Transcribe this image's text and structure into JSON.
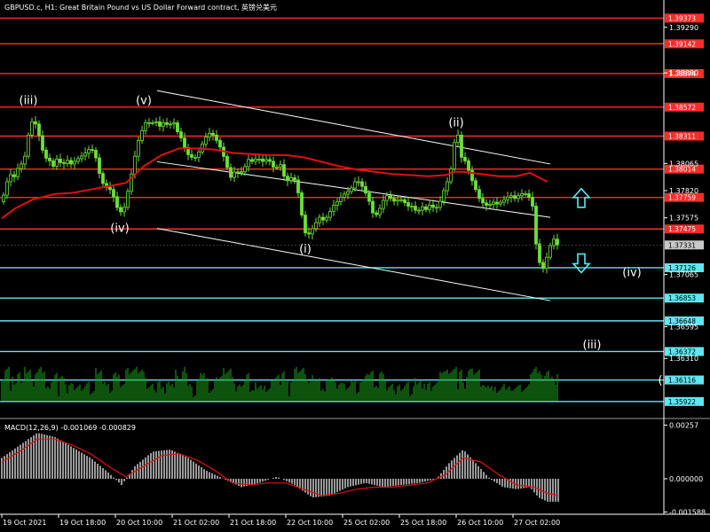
{
  "window": {
    "title": "GBPUSD.c, H1:  Great Britain Pound vs US Dollar Forward contract, 英镑兑美元"
  },
  "chart_data": {
    "type": "candlestick",
    "symbol": "GBPUSD.c",
    "timeframe": "H1",
    "price_axis": {
      "range": [
        1.35785,
        1.3952
      ],
      "ticks": [
        1.3929,
        1.3888,
        1.38065,
        1.3782,
        1.37575,
        1.37065,
        1.36595,
        1.3631
      ]
    },
    "time_axis": {
      "labels": [
        "19 Oct 2021",
        "19 Oct 18:00",
        "20 Oct 10:00",
        "21 Oct 02:00",
        "21 Oct 18:00",
        "22 Oct 10:00",
        "25 Oct 02:00",
        "25 Oct 18:00",
        "26 Oct 10:00",
        "27 Oct 02:00"
      ]
    },
    "current_price": 1.37331,
    "moving_average": {
      "color": "#e01010"
    },
    "price_series": [
      {
        "t": 0,
        "p": 1.3772
      },
      {
        "t": 4,
        "p": 1.3778
      },
      {
        "t": 8,
        "p": 1.379
      },
      {
        "t": 11,
        "p": 1.3798
      },
      {
        "t": 14,
        "p": 1.3793
      },
      {
        "t": 18,
        "p": 1.3796
      },
      {
        "t": 22,
        "p": 1.3808
      },
      {
        "t": 26,
        "p": 1.3804
      },
      {
        "t": 30,
        "p": 1.3822
      },
      {
        "t": 34,
        "p": 1.3842
      },
      {
        "t": 38,
        "p": 1.3846
      },
      {
        "t": 42,
        "p": 1.3838
      },
      {
        "t": 46,
        "p": 1.3825
      },
      {
        "t": 50,
        "p": 1.3812
      },
      {
        "t": 55,
        "p": 1.381
      },
      {
        "t": 60,
        "p": 1.3804
      },
      {
        "t": 65,
        "p": 1.3812
      },
      {
        "t": 70,
        "p": 1.3804
      },
      {
        "t": 75,
        "p": 1.381
      },
      {
        "t": 80,
        "p": 1.3806
      },
      {
        "t": 85,
        "p": 1.3809
      },
      {
        "t": 90,
        "p": 1.3812
      },
      {
        "t": 95,
        "p": 1.3815
      },
      {
        "t": 100,
        "p": 1.3819
      },
      {
        "t": 106,
        "p": 1.3818
      },
      {
        "t": 110,
        "p": 1.3805
      },
      {
        "t": 114,
        "p": 1.379
      },
      {
        "t": 118,
        "p": 1.3787
      },
      {
        "t": 122,
        "p": 1.3783
      },
      {
        "t": 126,
        "p": 1.3783
      },
      {
        "t": 130,
        "p": 1.377
      },
      {
        "t": 135,
        "p": 1.3762
      },
      {
        "t": 140,
        "p": 1.3767
      },
      {
        "t": 145,
        "p": 1.3785
      },
      {
        "t": 150,
        "p": 1.3805
      },
      {
        "t": 155,
        "p": 1.3825
      },
      {
        "t": 160,
        "p": 1.3836
      },
      {
        "t": 165,
        "p": 1.3845
      },
      {
        "t": 170,
        "p": 1.3842
      },
      {
        "t": 175,
        "p": 1.3845
      },
      {
        "t": 180,
        "p": 1.384
      },
      {
        "t": 185,
        "p": 1.3844
      },
      {
        "t": 190,
        "p": 1.384
      },
      {
        "t": 195,
        "p": 1.3845
      },
      {
        "t": 200,
        "p": 1.3835
      },
      {
        "t": 205,
        "p": 1.3828
      },
      {
        "t": 210,
        "p": 1.3816
      },
      {
        "t": 215,
        "p": 1.3812
      },
      {
        "t": 220,
        "p": 1.3812
      },
      {
        "t": 225,
        "p": 1.3818
      },
      {
        "t": 230,
        "p": 1.3828
      },
      {
        "t": 235,
        "p": 1.3834
      },
      {
        "t": 240,
        "p": 1.3832
      },
      {
        "t": 245,
        "p": 1.3826
      },
      {
        "t": 250,
        "p": 1.3818
      },
      {
        "t": 255,
        "p": 1.3805
      },
      {
        "t": 260,
        "p": 1.3794
      },
      {
        "t": 265,
        "p": 1.38
      },
      {
        "t": 270,
        "p": 1.3797
      },
      {
        "t": 275,
        "p": 1.3802
      },
      {
        "t": 280,
        "p": 1.381
      },
      {
        "t": 285,
        "p": 1.3808
      },
      {
        "t": 290,
        "p": 1.3812
      },
      {
        "t": 295,
        "p": 1.3808
      },
      {
        "t": 300,
        "p": 1.381
      },
      {
        "t": 305,
        "p": 1.3808
      },
      {
        "t": 310,
        "p": 1.38
      },
      {
        "t": 315,
        "p": 1.3808
      },
      {
        "t": 320,
        "p": 1.3795
      },
      {
        "t": 325,
        "p": 1.379
      },
      {
        "t": 330,
        "p": 1.3796
      },
      {
        "t": 335,
        "p": 1.3785
      },
      {
        "t": 340,
        "p": 1.376
      },
      {
        "t": 345,
        "p": 1.374
      },
      {
        "t": 350,
        "p": 1.3745
      },
      {
        "t": 355,
        "p": 1.3752
      },
      {
        "t": 360,
        "p": 1.3758
      },
      {
        "t": 365,
        "p": 1.3755
      },
      {
        "t": 370,
        "p": 1.376
      },
      {
        "t": 375,
        "p": 1.3768
      },
      {
        "t": 380,
        "p": 1.3772
      },
      {
        "t": 385,
        "p": 1.3777
      },
      {
        "t": 390,
        "p": 1.378
      },
      {
        "t": 395,
        "p": 1.3783
      },
      {
        "t": 400,
        "p": 1.379
      },
      {
        "t": 405,
        "p": 1.379
      },
      {
        "t": 410,
        "p": 1.3783
      },
      {
        "t": 415,
        "p": 1.3775
      },
      {
        "t": 420,
        "p": 1.3762
      },
      {
        "t": 425,
        "p": 1.376
      },
      {
        "t": 430,
        "p": 1.377
      },
      {
        "t": 435,
        "p": 1.3778
      },
      {
        "t": 440,
        "p": 1.3775
      },
      {
        "t": 445,
        "p": 1.3772
      },
      {
        "t": 450,
        "p": 1.3775
      },
      {
        "t": 455,
        "p": 1.3772
      },
      {
        "t": 460,
        "p": 1.3768
      },
      {
        "t": 465,
        "p": 1.3768
      },
      {
        "t": 470,
        "p": 1.3762
      },
      {
        "t": 475,
        "p": 1.3768
      },
      {
        "t": 480,
        "p": 1.3765
      },
      {
        "t": 485,
        "p": 1.377
      },
      {
        "t": 490,
        "p": 1.3765
      },
      {
        "t": 495,
        "p": 1.377
      },
      {
        "t": 500,
        "p": 1.3782
      },
      {
        "t": 505,
        "p": 1.3792
      },
      {
        "t": 510,
        "p": 1.3808
      },
      {
        "t": 513,
        "p": 1.3834
      },
      {
        "t": 516,
        "p": 1.3832
      },
      {
        "t": 520,
        "p": 1.3812
      },
      {
        "t": 525,
        "p": 1.3808
      },
      {
        "t": 530,
        "p": 1.3795
      },
      {
        "t": 535,
        "p": 1.3785
      },
      {
        "t": 540,
        "p": 1.3775
      },
      {
        "t": 545,
        "p": 1.377
      },
      {
        "t": 550,
        "p": 1.3768
      },
      {
        "t": 555,
        "p": 1.3772
      },
      {
        "t": 560,
        "p": 1.377
      },
      {
        "t": 565,
        "p": 1.3772
      },
      {
        "t": 570,
        "p": 1.3775
      },
      {
        "t": 575,
        "p": 1.3778
      },
      {
        "t": 580,
        "p": 1.3775
      },
      {
        "t": 585,
        "p": 1.3778
      },
      {
        "t": 590,
        "p": 1.378
      },
      {
        "t": 595,
        "p": 1.3778
      },
      {
        "t": 600,
        "p": 1.3768
      },
      {
        "t": 603,
        "p": 1.374
      },
      {
        "t": 606,
        "p": 1.3722
      },
      {
        "t": 609,
        "p": 1.3715
      },
      {
        "t": 612,
        "p": 1.3712
      },
      {
        "t": 615,
        "p": 1.3718
      },
      {
        "t": 618,
        "p": 1.373
      },
      {
        "t": 622,
        "p": 1.3735
      },
      {
        "t": 625,
        "p": 1.374
      },
      {
        "t": 627,
        "p": 1.3733
      }
    ],
    "ma_series": [
      {
        "t": 0,
        "p": 1.3757
      },
      {
        "t": 15,
        "p": 1.3766
      },
      {
        "t": 35,
        "p": 1.3774
      },
      {
        "t": 60,
        "p": 1.3779
      },
      {
        "t": 80,
        "p": 1.378
      },
      {
        "t": 100,
        "p": 1.3783
      },
      {
        "t": 120,
        "p": 1.3786
      },
      {
        "t": 140,
        "p": 1.3789
      },
      {
        "t": 160,
        "p": 1.3804
      },
      {
        "t": 180,
        "p": 1.3814
      },
      {
        "t": 200,
        "p": 1.382
      },
      {
        "t": 220,
        "p": 1.382
      },
      {
        "t": 240,
        "p": 1.3819
      },
      {
        "t": 260,
        "p": 1.3816
      },
      {
        "t": 280,
        "p": 1.3815
      },
      {
        "t": 300,
        "p": 1.3814
      },
      {
        "t": 320,
        "p": 1.3814
      },
      {
        "t": 340,
        "p": 1.3812
      },
      {
        "t": 360,
        "p": 1.3808
      },
      {
        "t": 380,
        "p": 1.3804
      },
      {
        "t": 400,
        "p": 1.3801
      },
      {
        "t": 420,
        "p": 1.3799
      },
      {
        "t": 440,
        "p": 1.3797
      },
      {
        "t": 460,
        "p": 1.3796
      },
      {
        "t": 480,
        "p": 1.3795
      },
      {
        "t": 500,
        "p": 1.3796
      },
      {
        "t": 510,
        "p": 1.3799
      },
      {
        "t": 520,
        "p": 1.3799
      },
      {
        "t": 540,
        "p": 1.3797
      },
      {
        "t": 560,
        "p": 1.3795
      },
      {
        "t": 580,
        "p": 1.3795
      },
      {
        "t": 595,
        "p": 1.3798
      },
      {
        "t": 605,
        "p": 1.3794
      },
      {
        "t": 615,
        "p": 1.379
      }
    ],
    "trend_lines": [
      {
        "t1": 175,
        "p1": 1.3872,
        "t2": 618,
        "p2": 1.3806
      },
      {
        "t1": 175,
        "p1": 1.3808,
        "t2": 618,
        "p2": 1.3758
      },
      {
        "t1": 175,
        "p1": 1.3748,
        "t2": 618,
        "p2": 1.3683
      }
    ],
    "horizontal_levels": [
      {
        "price": 1.39373,
        "label": "1.39373",
        "color": "#ff2a2a"
      },
      {
        "price": 1.39142,
        "label": "1.39142",
        "color": "#ff2a2a"
      },
      {
        "price": 1.38874,
        "label": "1.38874",
        "color": "#ff2a2a"
      },
      {
        "price": 1.38572,
        "label": "1.38572",
        "color": "#ff2a2a"
      },
      {
        "price": 1.38311,
        "label": "1.38311",
        "color": "#ff2a2a"
      },
      {
        "price": 1.38014,
        "label": "1.38014",
        "color": "#ff2a2a"
      },
      {
        "price": 1.37759,
        "label": "1.37759",
        "color": "#ff2a2a"
      },
      {
        "price": 1.37475,
        "label": "1.37475",
        "color": "#ff2a2a"
      },
      {
        "price": 1.37126,
        "label": "1.37126",
        "color": "#5fe6f0"
      },
      {
        "price": 1.36853,
        "label": "1.36853",
        "color": "#5fe6f0"
      },
      {
        "price": 1.36648,
        "label": "1.36648",
        "color": "#5fe6f0"
      },
      {
        "price": 1.36372,
        "label": "1.36372",
        "color": "#5fe6f0"
      },
      {
        "price": 1.36116,
        "label": "1.36116",
        "color": "#5fe6f0"
      },
      {
        "price": 1.35922,
        "label": "1.35922",
        "color": "#5fe6f0"
      }
    ],
    "wave_labels": [
      {
        "text": "(iii)",
        "t": 30,
        "p": 1.386
      },
      {
        "text": "(v)",
        "t": 160,
        "p": 1.386
      },
      {
        "text": "(iv)",
        "t": 133,
        "p": 1.3745
      },
      {
        "text": "(ii)",
        "t": 512,
        "p": 1.384
      },
      {
        "text": "(i)",
        "t": 342,
        "p": 1.3726
      },
      {
        "text": "(iv)",
        "t": 710,
        "p": 1.3705
      },
      {
        "text": "(iii)",
        "t": 665,
        "p": 1.364
      },
      {
        "text": "(",
        "t": 742,
        "p": 1.3608
      }
    ],
    "signal_arrows": [
      {
        "dir": "up",
        "t": 653,
        "p": 1.3775,
        "color": "#5fe6f0"
      },
      {
        "dir": "down",
        "t": 653,
        "p": 1.3717,
        "color": "#5fe6f0"
      }
    ],
    "volume_color": "#1aa31a",
    "macd": {
      "label": "MACD(12,26,9) -0.001069 -0.000829",
      "range": [
        -0.0017,
        0.0028
      ],
      "ticks": [
        0.00257,
        0.0,
        -0.001588
      ],
      "tick_labels": [
        "0.00257",
        "0.000000",
        "-0.001588"
      ],
      "histogram_color": "#c0c0c0",
      "signal_color": "#e01010",
      "histogram": [
        {
          "t": 0,
          "v": 0.001
        },
        {
          "t": 20,
          "v": 0.0016
        },
        {
          "t": 40,
          "v": 0.0022
        },
        {
          "t": 60,
          "v": 0.002
        },
        {
          "t": 80,
          "v": 0.0015
        },
        {
          "t": 100,
          "v": 0.001
        },
        {
          "t": 120,
          "v": 0.0003
        },
        {
          "t": 135,
          "v": -0.0003
        },
        {
          "t": 150,
          "v": 0.0006
        },
        {
          "t": 170,
          "v": 0.0013
        },
        {
          "t": 190,
          "v": 0.0014
        },
        {
          "t": 210,
          "v": 0.001
        },
        {
          "t": 230,
          "v": 0.0004
        },
        {
          "t": 250,
          "v": 0.0
        },
        {
          "t": 270,
          "v": -0.0004
        },
        {
          "t": 290,
          "v": -0.0002
        },
        {
          "t": 310,
          "v": 0.0001
        },
        {
          "t": 330,
          "v": -0.0003
        },
        {
          "t": 350,
          "v": -0.0009
        },
        {
          "t": 370,
          "v": -0.0008
        },
        {
          "t": 390,
          "v": -0.0004
        },
        {
          "t": 410,
          "v": -0.0002
        },
        {
          "t": 430,
          "v": -0.0004
        },
        {
          "t": 450,
          "v": -0.0003
        },
        {
          "t": 470,
          "v": -0.0002
        },
        {
          "t": 490,
          "v": 0.0
        },
        {
          "t": 505,
          "v": 0.0008
        },
        {
          "t": 520,
          "v": 0.0014
        },
        {
          "t": 535,
          "v": 0.0007
        },
        {
          "t": 550,
          "v": 0.0
        },
        {
          "t": 565,
          "v": -0.0004
        },
        {
          "t": 580,
          "v": -0.0005
        },
        {
          "t": 595,
          "v": -0.0004
        },
        {
          "t": 605,
          "v": -0.0009
        },
        {
          "t": 615,
          "v": -0.0011
        },
        {
          "t": 627,
          "v": -0.0011
        }
      ],
      "signal": [
        {
          "t": 0,
          "v": 0.0008
        },
        {
          "t": 20,
          "v": 0.0013
        },
        {
          "t": 40,
          "v": 0.0019
        },
        {
          "t": 60,
          "v": 0.0019
        },
        {
          "t": 80,
          "v": 0.0016
        },
        {
          "t": 100,
          "v": 0.0012
        },
        {
          "t": 120,
          "v": 0.0006
        },
        {
          "t": 140,
          "v": 0.0001
        },
        {
          "t": 160,
          "v": 0.0006
        },
        {
          "t": 180,
          "v": 0.0011
        },
        {
          "t": 200,
          "v": 0.0012
        },
        {
          "t": 220,
          "v": 0.0009
        },
        {
          "t": 240,
          "v": 0.0004
        },
        {
          "t": 260,
          "v": -0.0002
        },
        {
          "t": 280,
          "v": -0.0003
        },
        {
          "t": 300,
          "v": -0.0002
        },
        {
          "t": 320,
          "v": -0.0002
        },
        {
          "t": 340,
          "v": -0.0005
        },
        {
          "t": 360,
          "v": -0.0008
        },
        {
          "t": 380,
          "v": -0.0007
        },
        {
          "t": 400,
          "v": -0.0005
        },
        {
          "t": 420,
          "v": -0.0004
        },
        {
          "t": 440,
          "v": -0.0004
        },
        {
          "t": 460,
          "v": -0.0003
        },
        {
          "t": 480,
          "v": -0.0002
        },
        {
          "t": 500,
          "v": 0.0002
        },
        {
          "t": 520,
          "v": 0.001
        },
        {
          "t": 540,
          "v": 0.0008
        },
        {
          "t": 560,
          "v": 0.0002
        },
        {
          "t": 580,
          "v": -0.0003
        },
        {
          "t": 600,
          "v": -0.0004
        },
        {
          "t": 615,
          "v": -0.0007
        },
        {
          "t": 627,
          "v": -0.0008
        }
      ]
    }
  }
}
